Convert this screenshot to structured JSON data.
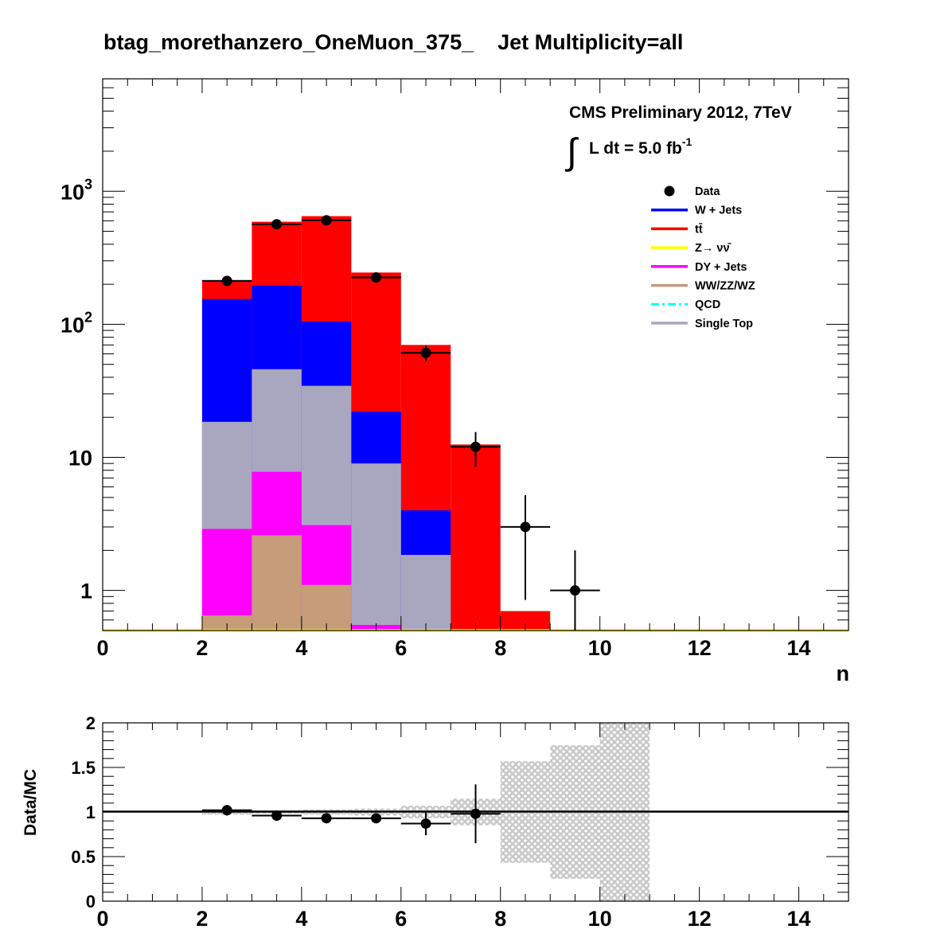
{
  "title": "btag_morethanzero_OneMuon_375_    Jet Multiplicity=all",
  "cms_label": "CMS Preliminary 2012, 7TeV",
  "lumi": {
    "prefix": "L dt = 5.0 fb",
    "superscript": "-1"
  },
  "colors": {
    "data": "#000000",
    "wjets": "#0000ff",
    "ttbar": "#ff0000",
    "zinv": "#ffff00",
    "dy": "#ff00ff",
    "diboson": "#c69c7b",
    "qcd": "#00ffff",
    "singletop": "#a9a7c0",
    "band": "#c8c8c8"
  },
  "legend": [
    {
      "label": "Data",
      "key": "data",
      "style": "marker"
    },
    {
      "label": "W + Jets",
      "key": "wjets",
      "style": "line"
    },
    {
      "label": "tt̄",
      "key": "ttbar",
      "style": "line"
    },
    {
      "label": "Z→ νν̄",
      "key": "zinv",
      "style": "line"
    },
    {
      "label": "DY + Jets",
      "key": "dy",
      "style": "line"
    },
    {
      "label": "WW/ZZ/WZ",
      "key": "diboson",
      "style": "line"
    },
    {
      "label": "QCD",
      "key": "qcd",
      "style": "dash"
    },
    {
      "label": "Single Top",
      "key": "singletop",
      "style": "line"
    }
  ],
  "chart_data": [
    {
      "type": "bar",
      "stacked": true,
      "log_y": true,
      "xlabel": "n",
      "ylabel": "",
      "xlim": [
        0,
        15
      ],
      "ylim": [
        0.5,
        7000
      ],
      "x_ticks": [
        "0",
        "2",
        "4",
        "6",
        "8",
        "10",
        "12",
        "14"
      ],
      "y_tick_labels": [
        {
          "value": 1,
          "label": "1"
        },
        {
          "value": 10,
          "label": "10"
        },
        {
          "value": 100,
          "label": "10",
          "exp": "2"
        },
        {
          "value": 1000,
          "label": "10",
          "exp": "3"
        }
      ],
      "bin_edges": [
        2,
        3,
        4,
        5,
        6,
        7,
        8,
        9
      ],
      "stack_order": [
        "diboson",
        "dy",
        "singletop",
        "wjets",
        "ttbar"
      ],
      "stack_cumulative": {
        "diboson": [
          0.65,
          2.6,
          1.1,
          0,
          0,
          0,
          0
        ],
        "dy": [
          2.9,
          7.8,
          3.1,
          0.55,
          0,
          0,
          0
        ],
        "singletop": [
          18.5,
          46,
          34.5,
          9,
          1.85,
          0,
          0
        ],
        "wjets": [
          155,
          195,
          105,
          22,
          4,
          0,
          0
        ],
        "ttbar": [
          215,
          590,
          650,
          245,
          70,
          12.5,
          0.7
        ]
      },
      "data_points": [
        {
          "x": 2.5,
          "y": 212,
          "yerr": 15
        },
        {
          "x": 3.5,
          "y": 565,
          "yerr": 24
        },
        {
          "x": 4.5,
          "y": 605,
          "yerr": 25
        },
        {
          "x": 5.5,
          "y": 225,
          "yerr": 15
        },
        {
          "x": 6.5,
          "y": 61,
          "yerr": 8
        },
        {
          "x": 7.5,
          "y": 12,
          "yerr": 3.5
        },
        {
          "x": 8.5,
          "y": 3,
          "yerr_up": 2.2,
          "yerr_down": 2.15
        },
        {
          "x": 9.5,
          "y": 1,
          "yerr_up": 1.0,
          "yerr_down": 0.99
        }
      ]
    },
    {
      "type": "scatter",
      "ylabel": "Data/MC",
      "xlim": [
        0,
        15
      ],
      "ylim": [
        0,
        2
      ],
      "x_ticks": [
        "0",
        "2",
        "4",
        "6",
        "8",
        "10",
        "12",
        "14"
      ],
      "y_ticks": [
        "0",
        "0.5",
        "1",
        "1.5",
        "2"
      ],
      "y_tick_values": [
        0,
        0.5,
        1,
        1.5,
        2
      ],
      "reference_line": 1,
      "uncertainty_band": [
        {
          "x0": 2,
          "x1": 3,
          "lo": 0.97,
          "hi": 1.03
        },
        {
          "x0": 3,
          "x1": 4,
          "lo": 0.98,
          "hi": 1.02
        },
        {
          "x0": 4,
          "x1": 5,
          "lo": 0.97,
          "hi": 1.03
        },
        {
          "x0": 5,
          "x1": 6,
          "lo": 0.96,
          "hi": 1.04
        },
        {
          "x0": 6,
          "x1": 7,
          "lo": 0.93,
          "hi": 1.07
        },
        {
          "x0": 7,
          "x1": 8,
          "lo": 0.85,
          "hi": 1.15
        },
        {
          "x0": 8,
          "x1": 9,
          "lo": 0.43,
          "hi": 1.57
        },
        {
          "x0": 9,
          "x1": 10,
          "lo": 0.25,
          "hi": 1.75
        },
        {
          "x0": 10,
          "x1": 11,
          "lo": 0,
          "hi": 2
        }
      ],
      "points": [
        {
          "x": 2.5,
          "y": 1.02,
          "yerr": 0.06
        },
        {
          "x": 3.5,
          "y": 0.96,
          "yerr": 0.0
        },
        {
          "x": 4.5,
          "y": 0.93,
          "yerr": 0.0
        },
        {
          "x": 5.5,
          "y": 0.93,
          "yerr": 0.05
        },
        {
          "x": 6.5,
          "y": 0.87,
          "yerr": 0.13
        },
        {
          "x": 7.5,
          "y": 0.98,
          "yerr": 0.33
        }
      ]
    }
  ]
}
